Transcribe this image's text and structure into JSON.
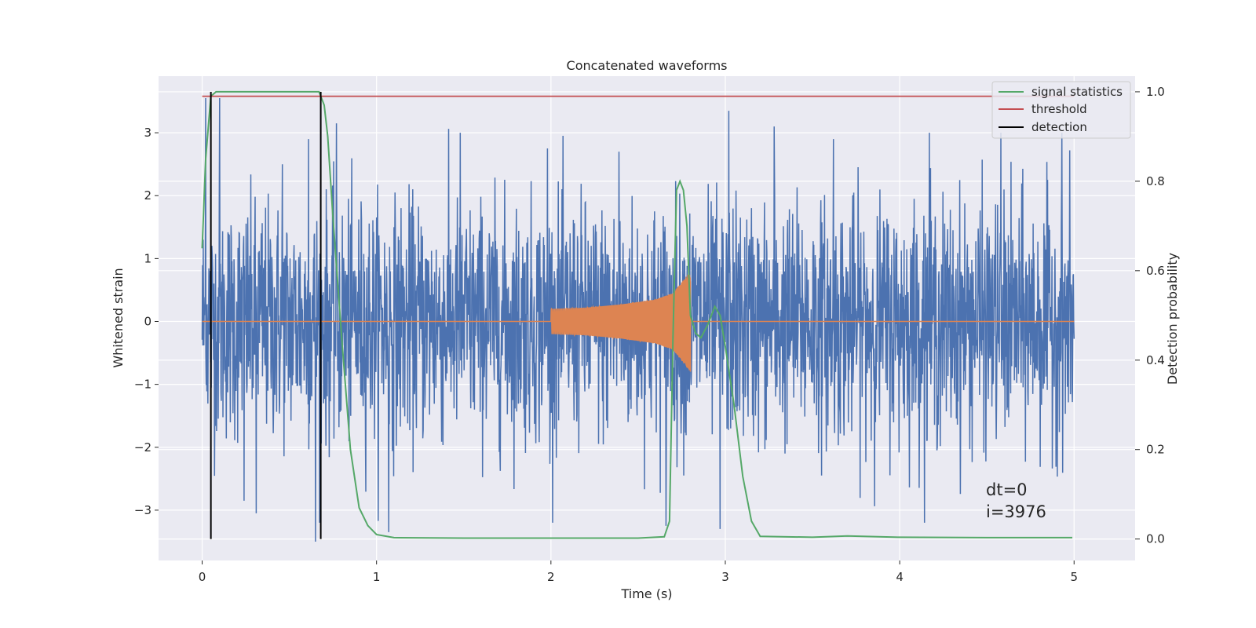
{
  "chart_data": {
    "type": "line",
    "title": "Concatenated waveforms",
    "xlabel": "Time (s)",
    "ylabel_left": "Whitened strain",
    "ylabel_right": "Detection probability",
    "xlim": [
      -0.25,
      5.35
    ],
    "ylim_left": [
      -3.8,
      3.9
    ],
    "ylim_right": [
      -0.048,
      1.035
    ],
    "x_ticks": [
      0,
      1,
      2,
      3,
      4,
      5
    ],
    "y_left_ticks": [
      -3,
      -2,
      -1,
      0,
      1,
      2,
      3
    ],
    "y_right_ticks": [
      0.0,
      0.2,
      0.4,
      0.6,
      0.8,
      1.0
    ],
    "y_right_tick_labels": [
      "0.0",
      "0.2",
      "0.4",
      "0.6",
      "0.8",
      "1.0"
    ],
    "grid": true,
    "legend_position": "top-right",
    "legend": [
      "signal statistics",
      "threshold",
      "detection"
    ],
    "colors": {
      "strain": "#4c72b0",
      "template": "#dd8452",
      "signal_statistics": "#55a868",
      "threshold": "#c44e52",
      "detection": "#000000",
      "background": "#eaeaf2",
      "grid": "#ffffff"
    },
    "series": [
      {
        "name": "strain",
        "axis": "left",
        "x_range": [
          0,
          5
        ],
        "typical_amplitude": 1.1,
        "max_peaks": [
          {
            "x": 0.02,
            "y": 3.55
          },
          {
            "x": 0.1,
            "y": 3.55
          },
          {
            "x": 0.24,
            "y": -2.85
          },
          {
            "x": 0.31,
            "y": -3.05
          },
          {
            "x": 0.46,
            "y": 2.5
          },
          {
            "x": 0.61,
            "y": 2.9
          },
          {
            "x": 0.65,
            "y": -3.5
          },
          {
            "x": 0.77,
            "y": 3.15
          },
          {
            "x": 1.07,
            "y": -3.35
          },
          {
            "x": 1.48,
            "y": 3.0
          },
          {
            "x": 1.98,
            "y": 2.75
          },
          {
            "x": 2.39,
            "y": 2.7
          },
          {
            "x": 2.66,
            "y": -3.25
          },
          {
            "x": 2.97,
            "y": -3.3
          },
          {
            "x": 3.02,
            "y": 3.35
          },
          {
            "x": 3.28,
            "y": 3.1
          },
          {
            "x": 3.62,
            "y": 2.9
          },
          {
            "x": 4.17,
            "y": 3.0
          },
          {
            "x": 4.58,
            "y": 3.0
          },
          {
            "x": 4.93,
            "y": 3.0
          }
        ]
      },
      {
        "name": "template",
        "axis": "left",
        "x": [
          0,
          2.0,
          2.2,
          2.4,
          2.6,
          2.7,
          2.8,
          2.8,
          5.0
        ],
        "y_envelope": [
          0,
          0.2,
          0.22,
          0.27,
          0.35,
          0.45,
          0.8,
          0,
          0
        ]
      },
      {
        "name": "signal statistics",
        "axis": "right",
        "x": [
          0,
          0.02,
          0.05,
          0.08,
          0.1,
          0.2,
          0.4,
          0.6,
          0.67,
          0.7,
          0.72,
          0.75,
          0.8,
          0.85,
          0.9,
          0.95,
          1.0,
          1.1,
          1.5,
          2.0,
          2.5,
          2.65,
          2.68,
          2.7,
          2.72,
          2.74,
          2.76,
          2.78,
          2.8,
          2.83,
          2.86,
          2.9,
          2.94,
          2.97,
          3.0,
          3.05,
          3.1,
          3.15,
          3.2,
          3.5,
          3.7,
          4.0,
          4.5,
          4.99
        ],
        "y": [
          0.65,
          0.85,
          0.99,
          1.0,
          1.0,
          1.0,
          1.0,
          1.0,
          1.0,
          0.97,
          0.9,
          0.72,
          0.45,
          0.2,
          0.07,
          0.03,
          0.01,
          0.003,
          0.002,
          0.002,
          0.002,
          0.005,
          0.04,
          0.45,
          0.78,
          0.8,
          0.78,
          0.7,
          0.5,
          0.46,
          0.45,
          0.48,
          0.52,
          0.5,
          0.43,
          0.3,
          0.14,
          0.04,
          0.006,
          0.004,
          0.007,
          0.004,
          0.003,
          0.003
        ]
      },
      {
        "name": "threshold",
        "axis": "right",
        "x": [
          0,
          5
        ],
        "y": [
          0.99,
          0.99
        ]
      },
      {
        "name": "detection",
        "axis": "right",
        "type": "vlines",
        "x": [
          0.05,
          0.68
        ],
        "y_range": [
          0,
          1.0
        ]
      }
    ],
    "annotations": [
      "dt=0",
      "i=3976"
    ]
  }
}
